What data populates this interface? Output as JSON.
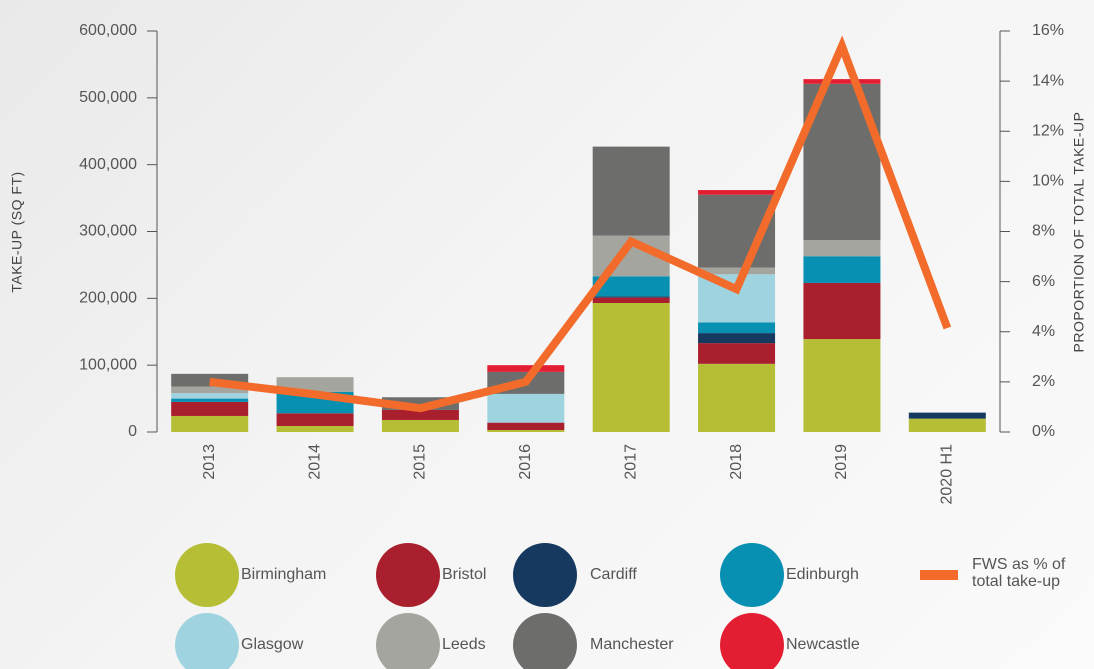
{
  "chart_data": {
    "type": "bar",
    "stacked": true,
    "categories": [
      "2013",
      "2014",
      "2015",
      "2016",
      "2017",
      "2018",
      "2019",
      "2020 H1"
    ],
    "y_label": "TAKE-UP (SQ FT)",
    "y2_label": "PROPORTION OF TOTAL TAKE-UP",
    "ylim": [
      0,
      600000
    ],
    "yticks": [
      0,
      {
        "value": 100000,
        "label": "100,000"
      },
      {
        "value": 200000,
        "label": "200,000"
      },
      {
        "value": 300000,
        "label": "300,000"
      },
      {
        "value": 400000,
        "label": "400,000"
      },
      {
        "value": 500000,
        "label": "500,000"
      },
      {
        "value": 600000,
        "label": "600,000"
      }
    ],
    "y2lim": [
      0,
      16
    ],
    "y2ticks": [
      {
        "value": 0,
        "label": "0%"
      },
      {
        "value": 2,
        "label": "2%"
      },
      {
        "value": 4,
        "label": "4%"
      },
      {
        "value": 6,
        "label": "6%"
      },
      {
        "value": 8,
        "label": "8%"
      },
      {
        "value": 10,
        "label": "10%"
      },
      {
        "value": 12,
        "label": "12%"
      },
      {
        "value": 14,
        "label": "14%"
      },
      {
        "value": 16,
        "label": "16%"
      }
    ],
    "series": [
      {
        "name": "Birmingham",
        "color": "#b5be34",
        "values": [
          24000,
          9000,
          18000,
          3000,
          193000,
          102000,
          139000,
          20000
        ]
      },
      {
        "name": "Bristol",
        "color": "#a91f2e",
        "values": [
          21000,
          19000,
          15000,
          11000,
          8000,
          31000,
          84000,
          0
        ]
      },
      {
        "name": "Cardiff",
        "color": "#163a5f",
        "values": [
          0,
          0,
          0,
          0,
          2000,
          15000,
          0,
          9000
        ]
      },
      {
        "name": "Edinburgh",
        "color": "#0890b2",
        "values": [
          5000,
          32000,
          0,
          0,
          30000,
          16000,
          40000,
          0
        ]
      },
      {
        "name": "Glasgow",
        "color": "#9fd3df",
        "values": [
          8000,
          0,
          0,
          43000,
          0,
          72000,
          0,
          0
        ]
      },
      {
        "name": "Leeds",
        "color": "#a5a5a0",
        "values": [
          10000,
          22000,
          0,
          0,
          61000,
          10000,
          24000,
          0
        ]
      },
      {
        "name": "Manchester",
        "color": "#6d6e6c",
        "values": [
          19000,
          0,
          19000,
          33000,
          133000,
          109000,
          234000,
          0
        ]
      },
      {
        "name": "Newcastle",
        "color": "#e31e33",
        "values": [
          0,
          0,
          0,
          10000,
          0,
          7000,
          7000,
          0
        ]
      },
      {
        "name": "FWS as % of total take-up",
        "color": "#f26b2a",
        "type": "line",
        "axis": "y2",
        "values": [
          2.0,
          1.5,
          0.95,
          2.0,
          7.6,
          5.7,
          15.4,
          4.15
        ]
      }
    ]
  }
}
